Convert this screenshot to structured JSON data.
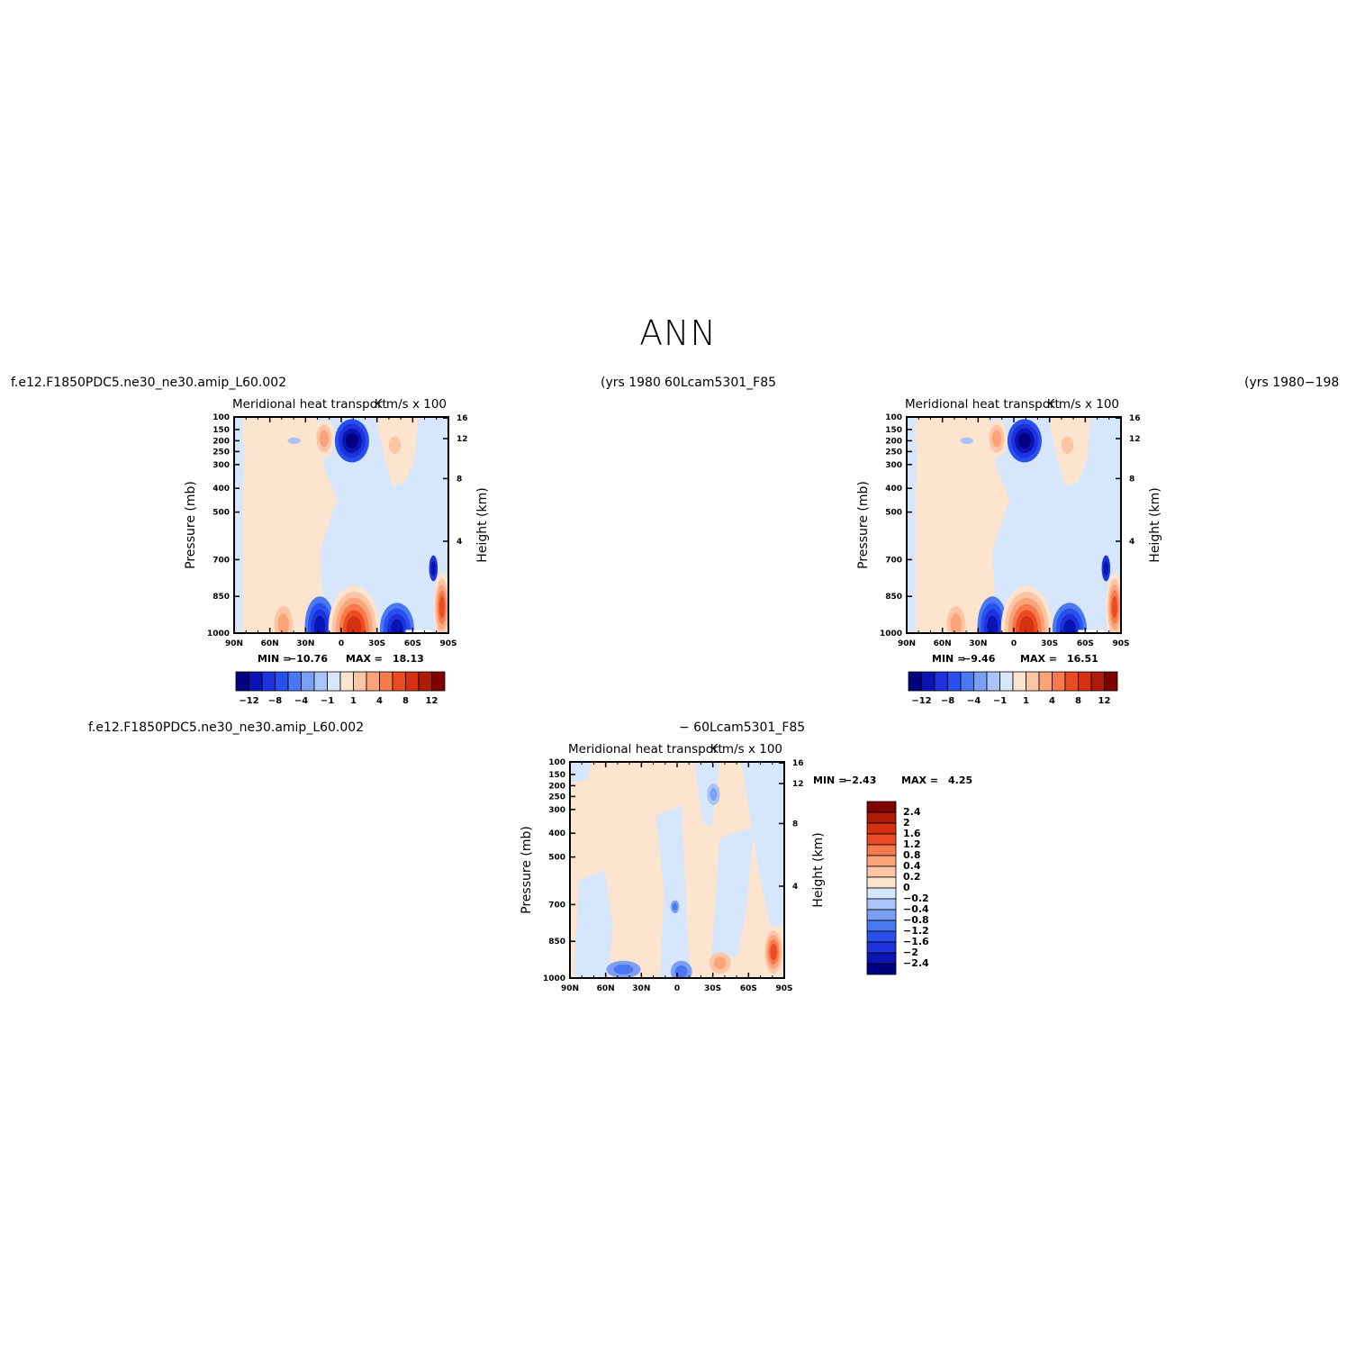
{
  "main_title": "ANN",
  "captions": {
    "top_left_case": "f.e12.F1850PDC5.ne30_ne30.amip_L60.002",
    "top_left_years": "(yrs 1980",
    "top_right_case": "60Lcam5301_F85",
    "top_right_years": "(yrs 1980−198",
    "bottom_left_case": "f.e12.F1850PDC5.ne30_ne30.amip_L60.002",
    "bottom_right_case": "− 60Lcam5301_F85"
  },
  "colors": {
    "blue_scale": [
      "#000080",
      "#0a14b4",
      "#1e32dc",
      "#2850ef",
      "#4a78f2",
      "#7a9ff5",
      "#a9c4f8",
      "#d6e6fd"
    ],
    "red_scale": [
      "#fde4cf",
      "#fcc6a6",
      "#fba47a",
      "#f77a4d",
      "#eb4b22",
      "#d5300f",
      "#ad1a08",
      "#800000"
    ]
  },
  "chart_data": [
    {
      "type": "heatmap",
      "title": "Meridional heat transport",
      "units": "K m/s x 100",
      "xlabel": "",
      "ylabel": "Pressure (mb)",
      "ylabel_right": "Height (km)",
      "x_ticks": [
        "90N",
        "60N",
        "30N",
        "0",
        "30S",
        "60S",
        "90S"
      ],
      "y_ticks": [
        "100",
        "150",
        "200",
        "250",
        "300",
        "400",
        "500",
        "700",
        "850",
        "1000"
      ],
      "y_right_ticks": [
        "16",
        "12",
        "8",
        "4"
      ],
      "min_label": "MIN =",
      "min_value": "−10.76",
      "max_label": "MAX =",
      "max_value": "18.13",
      "colorbar_labels": [
        "−12",
        "−8",
        "−4",
        "−1",
        "1",
        "4",
        "8",
        "12"
      ],
      "data_range": [
        -10.76,
        18.13
      ]
    },
    {
      "type": "heatmap",
      "title": "Meridional heat transport",
      "units": "K m/s x 100",
      "xlabel": "",
      "ylabel": "Pressure (mb)",
      "ylabel_right": "Height (km)",
      "x_ticks": [
        "90N",
        "60N",
        "30N",
        "0",
        "30S",
        "60S",
        "90S"
      ],
      "y_ticks": [
        "100",
        "150",
        "200",
        "250",
        "300",
        "400",
        "500",
        "700",
        "850",
        "1000"
      ],
      "y_right_ticks": [
        "16",
        "12",
        "8",
        "4"
      ],
      "min_label": "MIN =",
      "min_value": "−9.46",
      "max_label": "MAX =",
      "max_value": "16.51",
      "colorbar_labels": [
        "−12",
        "−8",
        "−4",
        "−1",
        "1",
        "4",
        "8",
        "12"
      ],
      "data_range": [
        -9.46,
        16.51
      ]
    },
    {
      "type": "heatmap",
      "title": "Meridional heat transport",
      "units": "K m/s x 100",
      "xlabel": "",
      "ylabel": "Pressure (mb)",
      "ylabel_right": "Height (km)",
      "x_ticks": [
        "90N",
        "60N",
        "30N",
        "0",
        "30S",
        "60S",
        "90S"
      ],
      "y_ticks": [
        "100",
        "150",
        "200",
        "250",
        "300",
        "400",
        "500",
        "700",
        "850",
        "1000"
      ],
      "y_right_ticks": [
        "16",
        "12",
        "8",
        "4"
      ],
      "min_label": "MIN =",
      "min_value": "−2.43",
      "max_label": "MAX =",
      "max_value": "4.25",
      "colorbar_labels": [
        "2.4",
        "2",
        "1.6",
        "1.2",
        "0.8",
        "0.4",
        "0.2",
        "0",
        "−0.2",
        "−0.4",
        "−0.8",
        "−1.2",
        "−1.6",
        "−2",
        "−2.4"
      ],
      "data_range": [
        -2.43,
        4.25
      ]
    }
  ]
}
